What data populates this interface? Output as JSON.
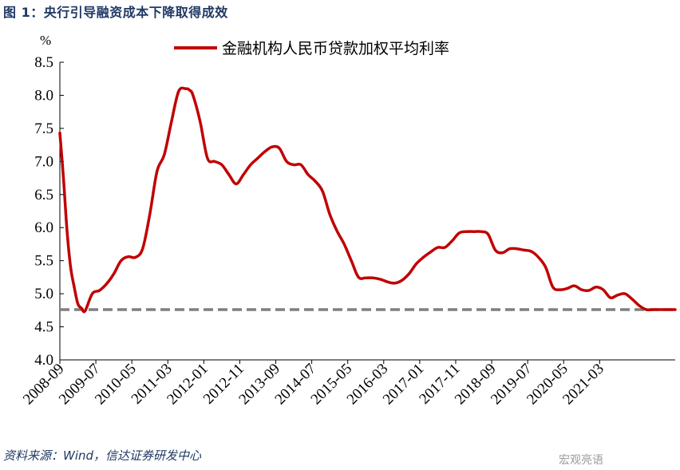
{
  "figure": {
    "title": "图 1：央行引导融资成本下降取得成效",
    "source": "资料来源：Wind，信达证券研发中心",
    "watermark": "宏观亮语"
  },
  "chart_data": {
    "type": "line",
    "ylabel": "%",
    "ylim": [
      4.0,
      8.5
    ],
    "yticks": [
      "4.0",
      "4.5",
      "5.0",
      "5.5",
      "6.0",
      "6.5",
      "7.0",
      "7.5",
      "8.0",
      "8.5"
    ],
    "xlim": [
      "2008-09",
      "2022-12"
    ],
    "xtick_labels": [
      "2008-09",
      "2009-07",
      "2010-05",
      "2011-03",
      "2012-01",
      "2012-11",
      "2013-09",
      "2014-07",
      "2015-05",
      "2016-03",
      "2017-01",
      "2017-11",
      "2018-09",
      "2019-07",
      "2020-05",
      "2021-03"
    ],
    "legend_position": "top-center",
    "grid": false,
    "series": [
      {
        "name": "金融机构人民币贷款加权平均利率",
        "color": "#c00000",
        "x": [
          "2008-09",
          "2008-10",
          "2008-11",
          "2008-12",
          "2009-01",
          "2009-02",
          "2009-03",
          "2009-04",
          "2009-06",
          "2009-08",
          "2009-10",
          "2009-12",
          "2010-02",
          "2010-04",
          "2010-06",
          "2010-08",
          "2010-10",
          "2010-12",
          "2011-02",
          "2011-04",
          "2011-06",
          "2011-08",
          "2011-09",
          "2011-10",
          "2011-12",
          "2012-02",
          "2012-04",
          "2012-06",
          "2012-08",
          "2012-10",
          "2012-12",
          "2013-02",
          "2013-04",
          "2013-06",
          "2013-08",
          "2013-10",
          "2013-12",
          "2014-02",
          "2014-04",
          "2014-06",
          "2014-08",
          "2014-10",
          "2014-12",
          "2015-02",
          "2015-04",
          "2015-06",
          "2015-08",
          "2015-10",
          "2015-12",
          "2016-02",
          "2016-04",
          "2016-06",
          "2016-08",
          "2016-10",
          "2016-12",
          "2017-02",
          "2017-04",
          "2017-06",
          "2017-08",
          "2017-10",
          "2017-12",
          "2018-02",
          "2018-04",
          "2018-06",
          "2018-08",
          "2018-10",
          "2018-12",
          "2019-02",
          "2019-04",
          "2019-06",
          "2019-08",
          "2019-10",
          "2019-12",
          "2020-02",
          "2020-04",
          "2020-06",
          "2020-08",
          "2020-10",
          "2020-12",
          "2021-02",
          "2021-04",
          "2021-06",
          "2021-08",
          "2021-10",
          "2021-12",
          "2022-02",
          "2022-04",
          "2022-06",
          "2022-08",
          "2022-10",
          "2022-12"
        ],
        "values": [
          7.43,
          6.75,
          5.95,
          5.4,
          5.1,
          4.85,
          4.78,
          4.74,
          5.0,
          5.05,
          5.15,
          5.3,
          5.5,
          5.56,
          5.55,
          5.68,
          6.2,
          6.85,
          7.1,
          7.6,
          8.06,
          8.1,
          8.08,
          8.0,
          7.6,
          7.05,
          7.0,
          6.95,
          6.8,
          6.66,
          6.8,
          6.95,
          7.05,
          7.15,
          7.22,
          7.2,
          7.0,
          6.95,
          6.95,
          6.8,
          6.7,
          6.55,
          6.2,
          5.95,
          5.75,
          5.5,
          5.25,
          5.24,
          5.24,
          5.22,
          5.18,
          5.16,
          5.2,
          5.3,
          5.45,
          5.55,
          5.63,
          5.7,
          5.7,
          5.8,
          5.92,
          5.94,
          5.94,
          5.94,
          5.9,
          5.66,
          5.62,
          5.68,
          5.68,
          5.66,
          5.64,
          5.55,
          5.4,
          5.1,
          5.06,
          5.08,
          5.12,
          5.06,
          5.05,
          5.1,
          5.06,
          4.94,
          4.98,
          5.0,
          4.92,
          4.82,
          4.76,
          4.76,
          4.76,
          4.76,
          4.76
        ]
      }
    ],
    "reference_lines": [
      {
        "axis": "y",
        "value": 4.76,
        "color": "#7f7f7f",
        "style": "dashed"
      }
    ]
  }
}
